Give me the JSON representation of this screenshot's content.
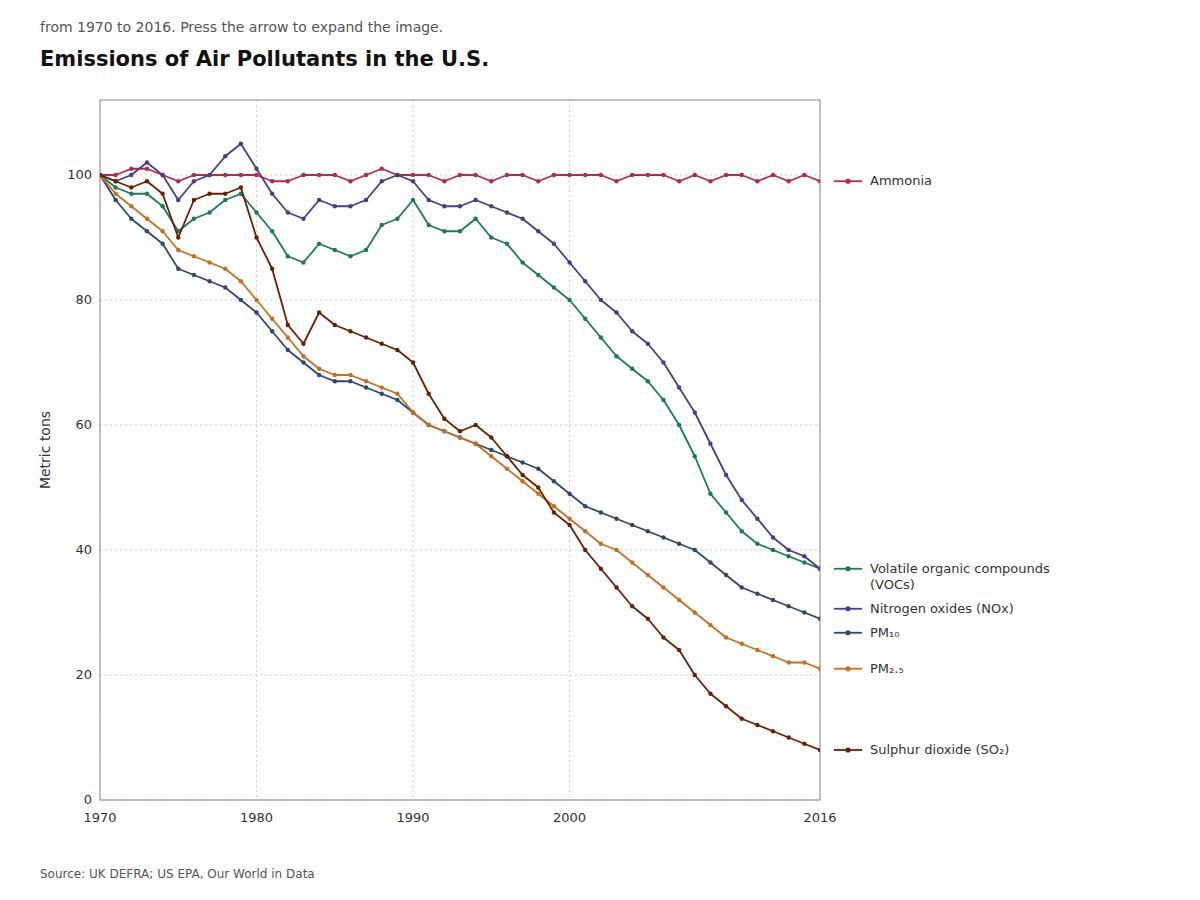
{
  "chart_data": {
    "type": "line",
    "title": "Emissions of Air Pollutants in the U.S.",
    "subtitle": "from 1970 to 2016. Press the arrow to expand the image.",
    "y_label": "Metric tons",
    "source": "Source: UK DEFRA; US EPA, Our World in Data",
    "x": [
      1970,
      1971,
      1972,
      1973,
      1974,
      1975,
      1976,
      1977,
      1978,
      1979,
      1980,
      1981,
      1982,
      1983,
      1984,
      1985,
      1986,
      1987,
      1988,
      1989,
      1990,
      1991,
      1992,
      1993,
      1994,
      1995,
      1996,
      1997,
      1998,
      1999,
      2000,
      2001,
      2002,
      2003,
      2004,
      2005,
      2006,
      2007,
      2008,
      2009,
      2010,
      2011,
      2012,
      2013,
      2014,
      2015,
      2016
    ],
    "series": [
      {
        "name": "Ammonia",
        "color": "#b5294e",
        "marker": "circle",
        "values": [
          100,
          100,
          101,
          101,
          100,
          99,
          100,
          100,
          100,
          100,
          100,
          99,
          99,
          100,
          100,
          100,
          99,
          100,
          101,
          100,
          100,
          100,
          99,
          100,
          100,
          99,
          100,
          100,
          99,
          100,
          100,
          100,
          100,
          99,
          100,
          100,
          100,
          99,
          100,
          99,
          100,
          100,
          99,
          100,
          99,
          100,
          99
        ]
      },
      {
        "name": "Volatile organic compounds\n(VOCs)",
        "color": "#1a7a5e",
        "marker": "circle",
        "values": [
          100,
          98,
          97,
          97,
          95,
          91,
          93,
          94,
          96,
          97,
          94,
          91,
          87,
          86,
          89,
          88,
          87,
          88,
          92,
          93,
          96,
          92,
          91,
          91,
          93,
          90,
          89,
          86,
          84,
          82,
          80,
          77,
          74,
          71,
          69,
          67,
          64,
          60,
          55,
          49,
          46,
          43,
          41,
          40,
          39,
          38,
          37
        ]
      },
      {
        "name": "Nitrogen oxides (NOx)",
        "color": "#483d8b",
        "marker": "circle",
        "values": [
          100,
          99,
          100,
          102,
          100,
          96,
          99,
          100,
          103,
          105,
          101,
          97,
          94,
          93,
          96,
          95,
          95,
          96,
          99,
          100,
          99,
          96,
          95,
          95,
          96,
          95,
          94,
          93,
          91,
          89,
          86,
          83,
          80,
          78,
          75,
          73,
          70,
          66,
          62,
          57,
          52,
          48,
          45,
          42,
          40,
          39,
          37
        ]
      },
      {
        "name": "PM₁₀",
        "color": "#2c4a6e",
        "marker": "circle",
        "values": [
          100,
          96,
          93,
          91,
          89,
          85,
          84,
          83,
          82,
          80,
          78,
          75,
          72,
          70,
          68,
          67,
          67,
          66,
          65,
          64,
          62,
          60,
          59,
          58,
          57,
          56,
          55,
          54,
          53,
          51,
          49,
          47,
          46,
          45,
          44,
          43,
          42,
          41,
          40,
          38,
          36,
          34,
          33,
          32,
          31,
          30,
          29
        ]
      },
      {
        "name": "PM₂.₅",
        "color": "#c47020",
        "marker": "circle",
        "values": [
          100,
          97,
          95,
          93,
          91,
          88,
          87,
          86,
          85,
          83,
          80,
          77,
          74,
          71,
          69,
          68,
          68,
          67,
          66,
          65,
          62,
          60,
          59,
          58,
          57,
          55,
          53,
          51,
          49,
          47,
          45,
          43,
          41,
          40,
          38,
          36,
          34,
          32,
          30,
          28,
          26,
          25,
          24,
          23,
          22,
          22,
          21
        ]
      },
      {
        "name": "Sulphur dioxide (SO₂)",
        "color": "#6b2000",
        "marker": "circle",
        "values": [
          100,
          99,
          98,
          99,
          97,
          90,
          96,
          97,
          97,
          98,
          90,
          85,
          76,
          73,
          78,
          76,
          75,
          74,
          73,
          72,
          70,
          65,
          61,
          59,
          60,
          58,
          55,
          52,
          50,
          46,
          44,
          40,
          37,
          34,
          31,
          29,
          26,
          24,
          20,
          17,
          15,
          13,
          12,
          11,
          10,
          9,
          8
        ]
      }
    ],
    "xlim": [
      1970,
      2016
    ],
    "xticks": [
      1970,
      1980,
      1990,
      2000,
      2016
    ],
    "ylim": [
      0,
      112
    ],
    "yticks": [
      0,
      20,
      40,
      60,
      80,
      100
    ],
    "grid": true,
    "legend": "right"
  }
}
